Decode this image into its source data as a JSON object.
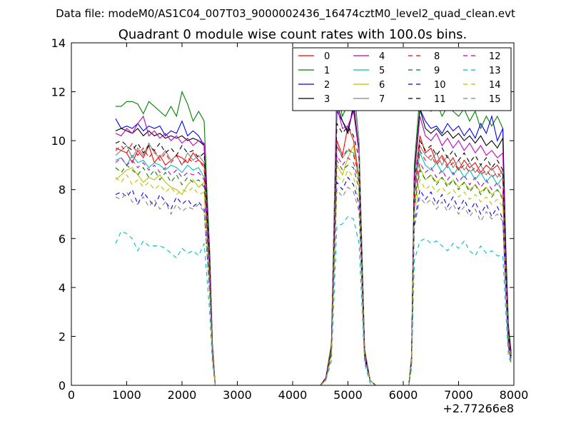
{
  "suptitle": "Data file: modeM0/AS1C04_007T03_9000002436_16474cztM0_level2_quad_clean.evt",
  "chart_data": {
    "type": "line",
    "title": "Quadrant 0 module wise count rates with 100.0s bins.",
    "xlabel": "",
    "ylabel": "",
    "xlim": [
      0,
      8000
    ],
    "ylim": [
      0,
      14
    ],
    "x_offset_label": "+2.77266e8",
    "x_ticks": [
      0,
      1000,
      2000,
      3000,
      4000,
      5000,
      6000,
      7000,
      8000
    ],
    "y_ticks": [
      0,
      2,
      4,
      6,
      8,
      10,
      12,
      14
    ],
    "grid": false,
    "legend_position": "top-right",
    "legend_columns": 4,
    "x": [
      800,
      900,
      1000,
      1100,
      1200,
      1300,
      1400,
      1500,
      1600,
      1700,
      1800,
      1900,
      2000,
      2100,
      2200,
      2300,
      2400,
      2450,
      2500,
      2550,
      2600,
      2650,
      2700,
      3000,
      3500,
      4000,
      4500,
      4600,
      4700,
      4800,
      4900,
      5000,
      5100,
      5200,
      5300,
      5400,
      5500,
      6000,
      6100,
      6150,
      6200,
      6300,
      6400,
      6500,
      6600,
      6700,
      6800,
      6900,
      7000,
      7100,
      7200,
      7300,
      7400,
      7500,
      7600,
      7700,
      7800,
      7850,
      7900,
      7950
    ],
    "series": [
      {
        "name": "0",
        "color": "#ff0000",
        "dash": false,
        "values": [
          9.7,
          9.6,
          9.5,
          9.1,
          9.6,
          9.3,
          9.8,
          9.1,
          9.4,
          9.0,
          9.2,
          9.4,
          9.3,
          9.1,
          9.5,
          9.2,
          9.0,
          7.0,
          5.0,
          1.5,
          0.0,
          0.0,
          0.0,
          0.0,
          0.0,
          0.0,
          0.0,
          0.3,
          1.5,
          10.0,
          9.4,
          10.6,
          10.0,
          8.5,
          1.3,
          0.2,
          0.0,
          0.0,
          0.0,
          1.0,
          8.0,
          10.2,
          9.5,
          9.7,
          9.1,
          9.4,
          9.0,
          9.3,
          8.8,
          9.2,
          8.9,
          9.1,
          8.7,
          9.0,
          8.8,
          9.0,
          8.6,
          5.0,
          2.0,
          1.3
        ]
      },
      {
        "name": "1",
        "color": "#008000",
        "dash": false,
        "values": [
          11.4,
          11.4,
          11.6,
          11.6,
          11.5,
          11.1,
          11.6,
          11.4,
          11.2,
          11.0,
          11.4,
          11.0,
          12.0,
          11.5,
          10.8,
          11.2,
          10.8,
          8.0,
          5.5,
          1.7,
          0.0,
          0.0,
          0.0,
          0.0,
          0.0,
          0.0,
          0.0,
          0.3,
          1.7,
          12.0,
          11.0,
          11.5,
          12.3,
          10.0,
          1.5,
          0.2,
          0.0,
          0.0,
          0.0,
          1.2,
          9.0,
          11.9,
          11.5,
          11.2,
          11.6,
          11.0,
          11.4,
          11.2,
          11.0,
          11.3,
          10.8,
          11.2,
          10.5,
          11.0,
          10.6,
          11.0,
          10.5,
          6.0,
          2.5,
          1.4
        ]
      },
      {
        "name": "2",
        "color": "#0000ff",
        "dash": false,
        "values": [
          10.9,
          10.5,
          10.6,
          10.5,
          10.7,
          10.4,
          10.6,
          10.5,
          10.6,
          10.2,
          10.4,
          10.3,
          10.8,
          10.2,
          10.4,
          10.2,
          9.8,
          7.5,
          5.2,
          1.6,
          0.0,
          0.0,
          0.0,
          0.0,
          0.0,
          0.0,
          0.0,
          0.3,
          1.6,
          11.2,
          10.8,
          10.4,
          11.3,
          9.6,
          1.4,
          0.2,
          0.0,
          0.0,
          0.0,
          1.1,
          8.6,
          11.3,
          10.8,
          10.5,
          10.6,
          10.3,
          10.7,
          10.4,
          10.6,
          10.2,
          10.5,
          10.1,
          10.7,
          10.3,
          11.0,
          10.0,
          10.5,
          5.6,
          2.2,
          1.3
        ]
      },
      {
        "name": "3",
        "color": "#000000",
        "dash": false,
        "values": [
          10.4,
          10.5,
          10.4,
          10.3,
          10.5,
          10.2,
          10.4,
          10.2,
          10.3,
          10.1,
          10.2,
          10.1,
          10.2,
          10.0,
          10.1,
          10.0,
          9.8,
          7.4,
          5.1,
          1.6,
          0.0,
          0.0,
          0.0,
          0.0,
          0.0,
          0.0,
          0.0,
          0.3,
          1.6,
          11.5,
          10.8,
          10.3,
          11.5,
          9.6,
          1.4,
          0.2,
          0.0,
          0.0,
          0.0,
          1.1,
          8.6,
          11.3,
          10.5,
          10.3,
          10.5,
          10.2,
          10.4,
          10.1,
          10.3,
          10.0,
          10.2,
          9.9,
          10.2,
          9.8,
          10.0,
          9.7,
          10.1,
          5.5,
          2.2,
          1.3
        ]
      },
      {
        "name": "4",
        "color": "#bf00bf",
        "dash": false,
        "values": [
          10.3,
          10.2,
          10.5,
          10.3,
          10.7,
          11.0,
          10.2,
          10.4,
          10.1,
          10.3,
          10.0,
          10.2,
          9.9,
          10.1,
          9.8,
          10.0,
          9.9,
          7.4,
          5.1,
          1.6,
          0.0,
          0.0,
          0.0,
          0.0,
          0.0,
          0.0,
          0.0,
          0.3,
          1.6,
          11.4,
          10.5,
          10.6,
          11.2,
          9.5,
          1.4,
          0.2,
          0.0,
          0.0,
          0.0,
          1.1,
          8.5,
          11.0,
          10.2,
          10.0,
          10.3,
          9.8,
          10.1,
          9.7,
          10.0,
          9.6,
          9.9,
          9.5,
          9.8,
          9.4,
          9.6,
          9.3,
          9.5,
          5.3,
          2.1,
          1.3
        ]
      },
      {
        "name": "5",
        "color": "#00bfbf",
        "dash": false,
        "values": [
          9.2,
          9.3,
          9.0,
          9.4,
          9.1,
          9.2,
          8.9,
          9.1,
          9.0,
          8.8,
          9.0,
          8.9,
          8.7,
          9.0,
          8.8,
          8.9,
          8.5,
          6.5,
          4.5,
          1.4,
          0.0,
          0.0,
          0.0,
          0.0,
          0.0,
          0.0,
          0.0,
          0.3,
          1.4,
          9.8,
          9.3,
          9.6,
          9.5,
          8.6,
          1.2,
          0.2,
          0.0,
          0.0,
          0.0,
          1.0,
          7.8,
          9.5,
          9.0,
          8.8,
          9.1,
          8.7,
          9.0,
          8.6,
          8.9,
          8.5,
          8.8,
          8.4,
          8.7,
          8.3,
          8.6,
          8.2,
          8.5,
          4.8,
          1.9,
          1.2
        ]
      },
      {
        "name": "6",
        "color": "#bfbf00",
        "dash": false,
        "values": [
          8.4,
          8.6,
          8.8,
          8.9,
          8.6,
          8.3,
          8.5,
          8.4,
          8.6,
          8.3,
          8.1,
          8.0,
          7.8,
          8.2,
          8.4,
          8.1,
          8.3,
          6.2,
          4.3,
          1.3,
          0.0,
          0.0,
          0.0,
          0.0,
          0.0,
          0.0,
          0.0,
          0.3,
          1.4,
          9.0,
          8.6,
          9.3,
          9.8,
          8.2,
          1.2,
          0.2,
          0.0,
          0.0,
          0.0,
          1.0,
          7.4,
          8.9,
          8.4,
          8.6,
          8.3,
          8.5,
          8.2,
          8.4,
          8.1,
          8.3,
          8.0,
          8.2,
          7.9,
          8.1,
          7.8,
          8.0,
          7.7,
          4.5,
          1.8,
          1.1
        ]
      },
      {
        "name": "7",
        "color": "#808080",
        "dash": false,
        "values": [
          9.4,
          9.6,
          9.8,
          9.3,
          9.7,
          9.4,
          9.9,
          9.5,
          9.3,
          9.6,
          9.2,
          9.4,
          9.0,
          9.5,
          9.2,
          9.4,
          9.1,
          6.9,
          4.8,
          1.5,
          0.0,
          0.0,
          0.0,
          0.0,
          0.0,
          0.0,
          0.0,
          0.3,
          1.6,
          12.8,
          11.8,
          11.4,
          12.0,
          10.0,
          1.4,
          0.2,
          0.0,
          0.0,
          0.0,
          1.1,
          8.2,
          9.8,
          9.4,
          9.2,
          9.5,
          9.0,
          9.4,
          8.9,
          9.2,
          8.8,
          9.1,
          8.7,
          9.0,
          8.6,
          8.9,
          8.5,
          8.8,
          5.0,
          2.0,
          1.2
        ]
      },
      {
        "name": "8",
        "color": "#ff0000",
        "dash": true,
        "values": [
          9.6,
          9.8,
          9.5,
          9.9,
          9.4,
          9.7,
          9.3,
          9.6,
          9.2,
          9.5,
          9.1,
          9.4,
          9.0,
          9.3,
          9.1,
          9.2,
          8.9,
          6.8,
          4.7,
          1.5,
          0.0,
          0.0,
          0.0,
          0.0,
          0.0,
          0.0,
          0.0,
          0.3,
          1.5,
          9.8,
          9.3,
          9.7,
          9.4,
          8.6,
          1.3,
          0.2,
          0.0,
          0.0,
          0.0,
          1.0,
          7.8,
          9.6,
          9.2,
          9.4,
          9.0,
          9.3,
          8.9,
          9.1,
          8.8,
          9.0,
          8.7,
          8.9,
          8.6,
          8.8,
          8.5,
          8.7,
          8.4,
          4.9,
          1.9,
          1.2
        ]
      },
      {
        "name": "9",
        "color": "#008000",
        "dash": true,
        "values": [
          8.9,
          8.7,
          9.0,
          8.8,
          8.6,
          8.9,
          8.5,
          8.8,
          8.4,
          8.7,
          8.3,
          8.6,
          8.2,
          8.5,
          8.3,
          8.4,
          8.1,
          6.2,
          4.3,
          1.3,
          0.0,
          0.0,
          0.0,
          0.0,
          0.0,
          0.0,
          0.0,
          0.3,
          1.4,
          9.2,
          8.8,
          9.0,
          8.9,
          8.0,
          1.2,
          0.2,
          0.0,
          0.0,
          0.0,
          1.0,
          7.2,
          8.8,
          8.4,
          8.6,
          8.2,
          8.5,
          8.1,
          8.4,
          8.0,
          8.3,
          7.9,
          8.2,
          7.8,
          8.1,
          7.7,
          8.0,
          7.6,
          4.4,
          1.8,
          1.1
        ]
      },
      {
        "name": "10",
        "color": "#0000ff",
        "dash": true,
        "values": [
          7.8,
          7.9,
          7.7,
          8.0,
          7.4,
          7.9,
          7.6,
          7.3,
          7.8,
          7.5,
          7.2,
          7.7,
          7.4,
          7.6,
          7.3,
          7.5,
          7.2,
          5.5,
          3.8,
          1.2,
          0.0,
          0.0,
          0.0,
          0.0,
          0.0,
          0.0,
          0.0,
          0.2,
          1.3,
          8.3,
          8.0,
          8.5,
          8.2,
          7.4,
          1.1,
          0.2,
          0.0,
          0.0,
          0.0,
          0.9,
          6.6,
          8.0,
          7.6,
          7.9,
          7.4,
          7.8,
          7.3,
          7.7,
          7.2,
          7.6,
          7.1,
          7.5,
          7.0,
          7.4,
          6.9,
          7.3,
          6.8,
          4.0,
          1.6,
          1.0
        ]
      },
      {
        "name": "11",
        "color": "#000000",
        "dash": true,
        "values": [
          9.9,
          10.0,
          9.8,
          9.6,
          9.9,
          9.5,
          9.8,
          9.6,
          9.9,
          9.5,
          9.7,
          9.4,
          9.8,
          9.5,
          9.6,
          9.3,
          9.5,
          7.2,
          5.0,
          1.5,
          0.0,
          0.0,
          0.0,
          0.0,
          0.0,
          0.0,
          0.0,
          0.3,
          1.5,
          10.7,
          10.3,
          10.6,
          10.2,
          9.3,
          1.3,
          0.2,
          0.0,
          0.0,
          0.0,
          1.1,
          8.3,
          10.0,
          9.6,
          9.8,
          9.4,
          9.7,
          9.3,
          9.6,
          9.2,
          9.5,
          9.1,
          9.4,
          9.0,
          9.3,
          8.9,
          9.2,
          8.8,
          5.1,
          2.0,
          1.2
        ]
      },
      {
        "name": "12",
        "color": "#bf00bf",
        "dash": true,
        "values": [
          9.1,
          9.3,
          9.0,
          9.2,
          8.9,
          9.1,
          8.8,
          9.0,
          8.7,
          8.9,
          8.6,
          8.8,
          8.5,
          8.7,
          8.6,
          8.7,
          8.4,
          6.4,
          4.5,
          1.4,
          0.0,
          0.0,
          0.0,
          0.0,
          0.0,
          0.0,
          0.0,
          0.3,
          1.4,
          9.4,
          9.0,
          9.3,
          9.1,
          8.3,
          1.2,
          0.2,
          0.0,
          0.0,
          0.0,
          1.0,
          7.5,
          9.1,
          8.7,
          8.9,
          8.5,
          8.8,
          8.4,
          8.7,
          8.3,
          8.6,
          8.2,
          8.5,
          8.1,
          8.4,
          8.0,
          8.3,
          7.9,
          4.6,
          1.8,
          1.1
        ]
      },
      {
        "name": "13",
        "color": "#00bfbf",
        "dash": true,
        "values": [
          5.8,
          6.3,
          6.2,
          6.0,
          5.5,
          5.9,
          5.7,
          5.7,
          5.7,
          5.6,
          5.4,
          5.2,
          5.6,
          5.4,
          5.5,
          5.3,
          5.8,
          4.4,
          3.0,
          0.9,
          0.0,
          0.0,
          0.0,
          0.0,
          0.0,
          0.0,
          0.0,
          0.2,
          1.0,
          6.5,
          6.6,
          6.9,
          6.8,
          5.8,
          0.9,
          0.1,
          0.0,
          0.0,
          0.0,
          0.7,
          5.1,
          5.9,
          6.0,
          5.8,
          5.9,
          5.7,
          5.5,
          5.8,
          5.6,
          5.9,
          5.5,
          5.3,
          5.7,
          5.4,
          5.5,
          5.3,
          5.3,
          3.1,
          1.2,
          0.9
        ]
      },
      {
        "name": "14",
        "color": "#bfbf00",
        "dash": true,
        "values": [
          8.5,
          8.3,
          8.6,
          8.2,
          8.4,
          8.1,
          8.3,
          8.0,
          8.2,
          7.9,
          8.1,
          7.8,
          8.0,
          7.9,
          8.1,
          7.8,
          7.9,
          6.0,
          4.1,
          1.3,
          0.0,
          0.0,
          0.0,
          0.0,
          0.0,
          0.0,
          0.0,
          0.2,
          1.3,
          8.6,
          8.3,
          8.8,
          8.5,
          7.7,
          1.1,
          0.2,
          0.0,
          0.0,
          0.0,
          0.9,
          7.0,
          8.4,
          8.0,
          8.2,
          7.9,
          8.1,
          7.8,
          8.0,
          7.7,
          7.9,
          7.6,
          7.8,
          7.5,
          7.7,
          7.4,
          7.6,
          7.3,
          4.3,
          1.7,
          1.0
        ]
      },
      {
        "name": "15",
        "color": "#808080",
        "dash": true,
        "values": [
          7.7,
          7.6,
          7.9,
          7.5,
          7.4,
          7.7,
          7.3,
          7.6,
          7.2,
          7.5,
          7.0,
          7.4,
          7.1,
          7.3,
          7.2,
          7.4,
          7.1,
          5.4,
          3.7,
          1.1,
          0.0,
          0.0,
          0.0,
          0.0,
          0.0,
          0.0,
          0.0,
          0.2,
          1.2,
          8.0,
          7.7,
          8.1,
          7.9,
          7.1,
          1.0,
          0.2,
          0.0,
          0.0,
          0.0,
          0.9,
          6.4,
          7.7,
          7.4,
          7.6,
          7.2,
          7.5,
          7.1,
          7.4,
          7.0,
          7.3,
          6.9,
          7.2,
          6.7,
          7.1,
          6.8,
          7.0,
          6.7,
          3.9,
          1.5,
          0.9
        ]
      }
    ]
  }
}
